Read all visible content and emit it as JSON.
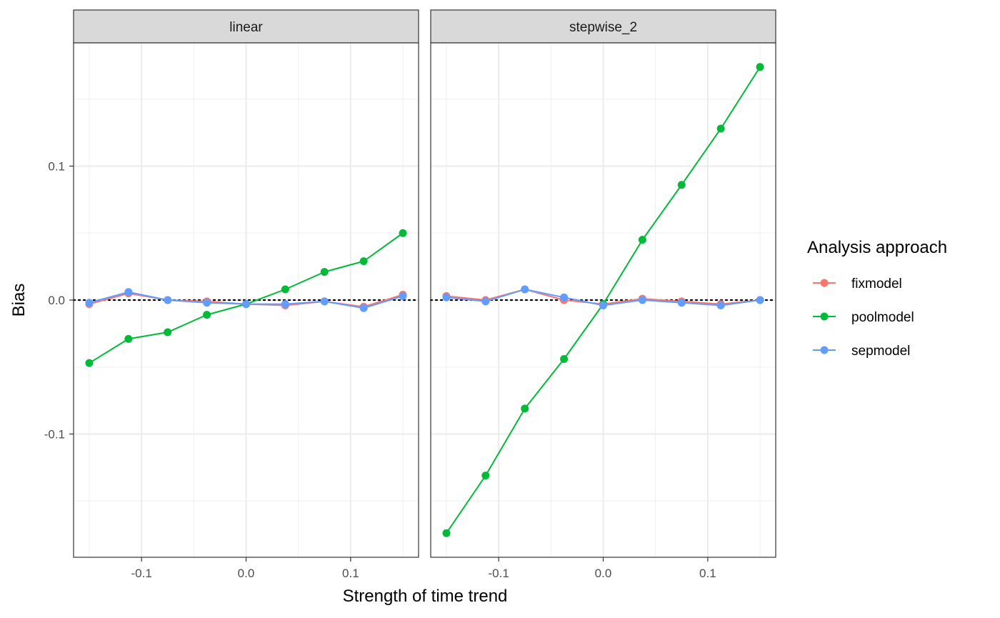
{
  "chart_data": {
    "type": "line",
    "xlabel": "Strength of time trend",
    "ylabel": "Bias",
    "xlim": [
      -0.165,
      0.165
    ],
    "ylim": [
      -0.192,
      0.192
    ],
    "x_ticks": [
      -0.1,
      0.0,
      0.1
    ],
    "x_tick_labels": [
      "-0.1",
      "0.0",
      "0.1"
    ],
    "y_ticks": [
      -0.1,
      0.0,
      0.1
    ],
    "y_tick_labels": [
      "-0.1",
      "0.0",
      "0.1"
    ],
    "reference_line": {
      "y": 0,
      "style": "dotted"
    },
    "grid": true,
    "legend": {
      "title": "Analysis approach",
      "position": "right"
    },
    "x": [
      -0.15,
      -0.1125,
      -0.075,
      -0.0375,
      0.0,
      0.0375,
      0.075,
      0.1125,
      0.15
    ],
    "panels": [
      {
        "title": "linear",
        "series": [
          {
            "name": "fixmodel",
            "color": "#F8766D",
            "values": [
              -0.003,
              0.005,
              0.0,
              -0.001,
              -0.003,
              -0.004,
              -0.001,
              -0.005,
              0.004
            ]
          },
          {
            "name": "poolmodel",
            "color": "#00BA38",
            "values": [
              -0.047,
              -0.029,
              -0.024,
              -0.011,
              -0.003,
              0.008,
              0.021,
              0.029,
              0.05
            ]
          },
          {
            "name": "sepmodel",
            "color": "#619CFF",
            "values": [
              -0.002,
              0.006,
              0.0,
              -0.002,
              -0.003,
              -0.003,
              -0.001,
              -0.006,
              0.003
            ]
          }
        ]
      },
      {
        "title": "stepwise_2",
        "series": [
          {
            "name": "fixmodel",
            "color": "#F8766D",
            "values": [
              0.003,
              0.0,
              0.008,
              0.0,
              -0.003,
              0.001,
              -0.001,
              -0.003,
              0.0
            ]
          },
          {
            "name": "poolmodel",
            "color": "#00BA38",
            "values": [
              -0.174,
              -0.131,
              -0.081,
              -0.044,
              -0.003,
              0.045,
              0.086,
              0.128,
              0.174
            ]
          },
          {
            "name": "sepmodel",
            "color": "#619CFF",
            "values": [
              0.002,
              -0.001,
              0.008,
              0.002,
              -0.004,
              0.0,
              -0.002,
              -0.004,
              0.0
            ]
          }
        ]
      }
    ]
  }
}
